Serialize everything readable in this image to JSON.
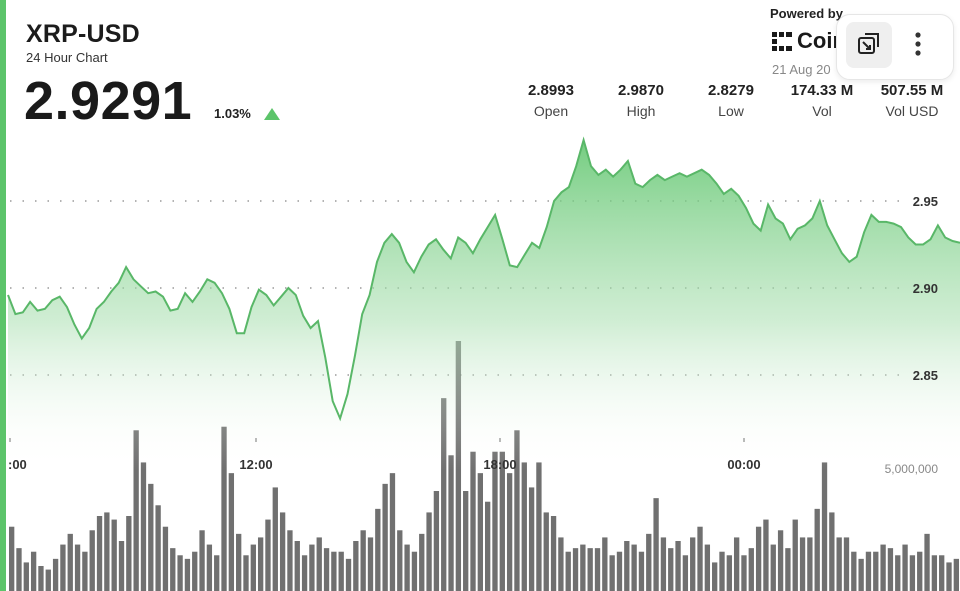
{
  "header": {
    "title": "XRP-USD",
    "subtitle": "24 Hour Chart",
    "price": "2.9291",
    "change": "1.03%"
  },
  "branding": {
    "powered_by": "Powered by",
    "brand": "Coin",
    "date": "21 Aug 20"
  },
  "stats": [
    {
      "value": "2.8993",
      "label": "Open"
    },
    {
      "value": "2.9870",
      "label": "High"
    },
    {
      "value": "2.8279",
      "label": "Low"
    },
    {
      "value": "174.33 M",
      "label": "Vol"
    },
    {
      "value": "507.55 M",
      "label": "Vol USD"
    }
  ],
  "colors": {
    "accent": "#5cc46a",
    "line": "#59b768",
    "volume_bar": "#606060",
    "grid_dot": "#9a9a9a"
  },
  "icons": {
    "expand": "expand-external-icon",
    "more": "more-vertical-icon",
    "change": "triangle-up-icon",
    "brand": "coin-logo-icon"
  },
  "chart_data": {
    "type": "area",
    "x_ticks": [
      ":00",
      "12:00",
      "18:00",
      "00:00"
    ],
    "y_ticks": [
      "2.95",
      "2.90",
      "2.85"
    ],
    "ylim": [
      2.78,
      3.0
    ],
    "volume_tick": "5,000,000",
    "volume_max": 7000000,
    "grid": true,
    "series": [
      {
        "values": [
          2.896,
          2.885,
          2.886,
          2.892,
          2.887,
          2.888,
          2.893,
          2.895,
          2.889,
          2.879,
          2.871,
          2.877,
          2.888,
          2.892,
          2.898,
          2.903,
          2.912,
          2.905,
          2.901,
          2.897,
          2.898,
          2.895,
          2.887,
          2.888,
          2.897,
          2.892,
          2.898,
          2.905,
          2.903,
          2.897,
          2.888,
          2.874,
          2.874,
          2.889,
          2.899,
          2.896,
          2.89,
          2.895,
          2.9,
          2.896,
          2.884,
          2.877,
          2.881,
          2.86,
          2.835,
          2.825,
          2.839,
          2.861,
          2.885,
          2.896,
          2.915,
          2.926,
          2.931,
          2.926,
          2.915,
          2.909,
          2.918,
          2.925,
          2.928,
          2.922,
          2.917,
          2.929,
          2.926,
          2.92,
          2.928,
          2.935,
          2.942,
          2.928,
          2.913,
          2.912,
          2.919,
          2.926,
          2.923,
          2.935,
          2.95,
          2.955,
          2.958,
          2.97,
          2.985,
          2.97,
          2.965,
          2.968,
          2.964,
          2.968,
          2.973,
          2.96,
          2.958,
          2.962,
          2.965,
          2.962,
          2.964,
          2.966,
          2.964,
          2.966,
          2.968,
          2.965,
          2.96,
          2.954,
          2.957,
          2.953,
          2.946,
          2.937,
          2.933,
          2.948,
          2.94,
          2.937,
          2.928,
          2.934,
          2.936,
          2.94,
          2.95,
          2.936,
          2.928,
          2.92,
          2.915,
          2.918,
          2.932,
          2.942,
          2.938,
          2.938,
          2.937,
          2.935,
          2.929,
          2.925,
          2.925,
          2.928,
          2.936,
          2.929,
          2.927,
          2.926
        ]
      }
    ],
    "volume": [
      1.8,
      1.2,
      0.8,
      1.1,
      0.7,
      0.6,
      0.9,
      1.3,
      1.6,
      1.3,
      1.1,
      1.7,
      2.1,
      2.2,
      2.0,
      1.4,
      2.1,
      4.5,
      3.6,
      3.0,
      2.4,
      1.8,
      1.2,
      1.0,
      0.9,
      1.1,
      1.7,
      1.3,
      1.0,
      4.6,
      3.3,
      1.6,
      1.0,
      1.3,
      1.5,
      2.0,
      2.9,
      2.2,
      1.7,
      1.4,
      1.0,
      1.3,
      1.5,
      1.2,
      1.1,
      1.1,
      0.9,
      1.4,
      1.7,
      1.5,
      2.3,
      3.0,
      3.3,
      1.7,
      1.3,
      1.1,
      1.6,
      2.2,
      2.8,
      5.4,
      3.8,
      7.0,
      2.8,
      3.9,
      3.3,
      2.5,
      3.9,
      3.9,
      3.3,
      4.5,
      3.6,
      2.9,
      3.6,
      2.2,
      2.1,
      1.5,
      1.1,
      1.2,
      1.3,
      1.2,
      1.2,
      1.5,
      1.0,
      1.1,
      1.4,
      1.3,
      1.1,
      1.6,
      2.6,
      1.5,
      1.2,
      1.4,
      1.0,
      1.5,
      1.8,
      1.3,
      0.8,
      1.1,
      1.0,
      1.5,
      1.0,
      1.2,
      1.8,
      2.0,
      1.3,
      1.7,
      1.2,
      2.0,
      1.5,
      1.5,
      2.3,
      3.6,
      2.2,
      1.5,
      1.5,
      1.1,
      0.9,
      1.1,
      1.1,
      1.3,
      1.2,
      1.0,
      1.3,
      1.0,
      1.1,
      1.6,
      1.0,
      1.0,
      0.8,
      0.9
    ]
  }
}
